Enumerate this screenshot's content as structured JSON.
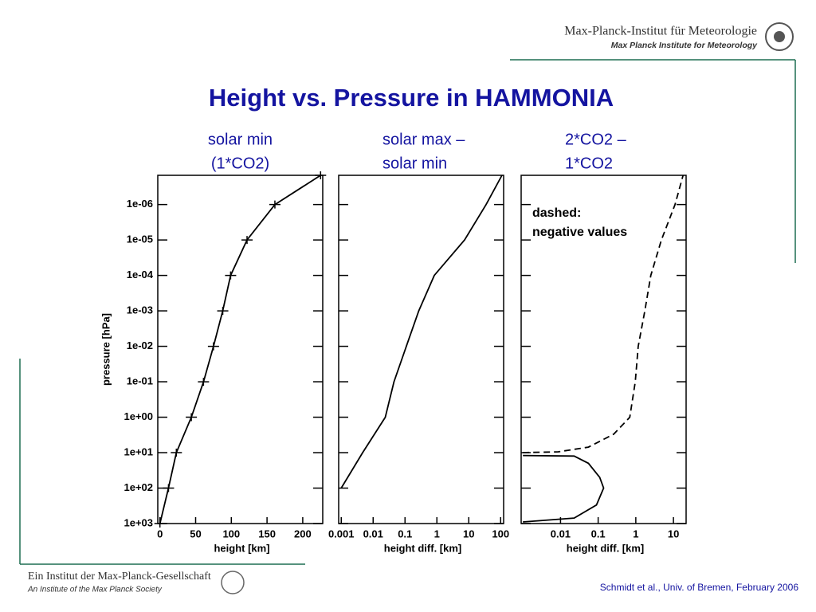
{
  "header": {
    "institute": "Max-Planck-Institut für Meteorologie",
    "institute_en": "Max Planck Institute for Meteorology"
  },
  "title": "Height vs. Pressure in HAMMONIA",
  "footer": {
    "society": "Ein Institut der Max-Planck-Gesellschaft",
    "society_en": "An Institute of the Max Planck Society",
    "credit": "Schmidt et al., Univ. of Bremen, February 2006"
  },
  "chart_data": [
    {
      "type": "line",
      "title": [
        "solar min",
        "(1*CO2)"
      ],
      "xlabel": "height [km]",
      "ylabel": "pressure [hPa]",
      "xscale": "linear",
      "yscale": "log",
      "xlim": [
        -3,
        228
      ],
      "xticks": [
        0,
        50,
        100,
        150,
        200
      ],
      "ylim": [
        1000,
        1.5e-07
      ],
      "yticks": [
        {
          "value": 1e-06,
          "label": "1e-06"
        },
        {
          "value": 1e-05,
          "label": "1e-05"
        },
        {
          "value": 0.0001,
          "label": "1e-04"
        },
        {
          "value": 0.001,
          "label": "1e-03"
        },
        {
          "value": 0.01,
          "label": "1e-02"
        },
        {
          "value": 0.1,
          "label": "1e-01"
        },
        {
          "value": 1,
          "label": "1e+00"
        },
        {
          "value": 10,
          "label": "1e+01"
        },
        {
          "value": 100,
          "label": "1e+02"
        },
        {
          "value": 1000,
          "label": "1e+03"
        }
      ],
      "markers": true,
      "series": [
        {
          "color": "#000000",
          "dashed": false,
          "x": [
            0,
            12,
            23,
            44,
            61,
            75,
            88,
            99,
            122,
            161,
            225
          ],
          "y": [
            1000,
            100,
            10,
            1,
            0.1,
            0.01,
            0.001,
            0.0001,
            1e-05,
            1e-06,
            1.5e-07
          ]
        }
      ]
    },
    {
      "type": "line",
      "title": [
        "solar max –",
        "solar min"
      ],
      "xlabel": "height diff. [km]",
      "xscale": "log",
      "yscale": "log",
      "xlim": [
        0.00083,
        124
      ],
      "xticks": [
        0.001,
        0.01,
        0.1,
        1,
        10,
        100
      ],
      "ylim": [
        1000,
        1.5e-07
      ],
      "yticks": [
        1e-06,
        1e-05,
        0.0001,
        0.001,
        0.01,
        0.1,
        1,
        10,
        100,
        1000
      ],
      "series": [
        {
          "color": "#000000",
          "dashed": false,
          "x": [
            0.001,
            0.0047,
            0.024,
            0.045,
            0.11,
            0.27,
            0.83,
            7.4,
            35,
            110
          ],
          "y": [
            100,
            10,
            1,
            0.1,
            0.01,
            0.001,
            0.0001,
            1e-05,
            1e-06,
            1.5e-07
          ]
        }
      ]
    },
    {
      "type": "line",
      "title": [
        "2*CO2 –",
        "1*CO2"
      ],
      "xlabel": "height diff. [km]",
      "xscale": "log",
      "yscale": "log",
      "annotation": [
        "dashed:",
        "negative values"
      ],
      "xlim": [
        0.0009,
        21.7
      ],
      "xticks": [
        0.01,
        0.1,
        1,
        10
      ],
      "ylim": [
        1000,
        1.5e-07
      ],
      "yticks": [
        1e-06,
        1e-05,
        0.0001,
        0.001,
        0.01,
        0.1,
        1,
        10,
        100,
        1000
      ],
      "series": [
        {
          "color": "#000000",
          "dashed": true,
          "x": [
            0.001,
            0.0087,
            0.055,
            0.26,
            0.69,
            0.97,
            1.16,
            1.74,
            2.5,
            4.8,
            11,
            18
          ],
          "y": [
            10,
            9.5,
            7,
            3,
            1,
            0.1,
            0.01,
            0.001,
            0.0001,
            1e-05,
            1e-06,
            1.5e-07
          ]
        },
        {
          "color": "#000000",
          "dashed": false,
          "x": [
            0.001,
            0.023,
            0.055,
            0.11,
            0.14,
            0.09,
            0.023,
            0.001
          ],
          "y": [
            12,
            12.5,
            20,
            50,
            100,
            300,
            700,
            900
          ]
        }
      ]
    }
  ]
}
